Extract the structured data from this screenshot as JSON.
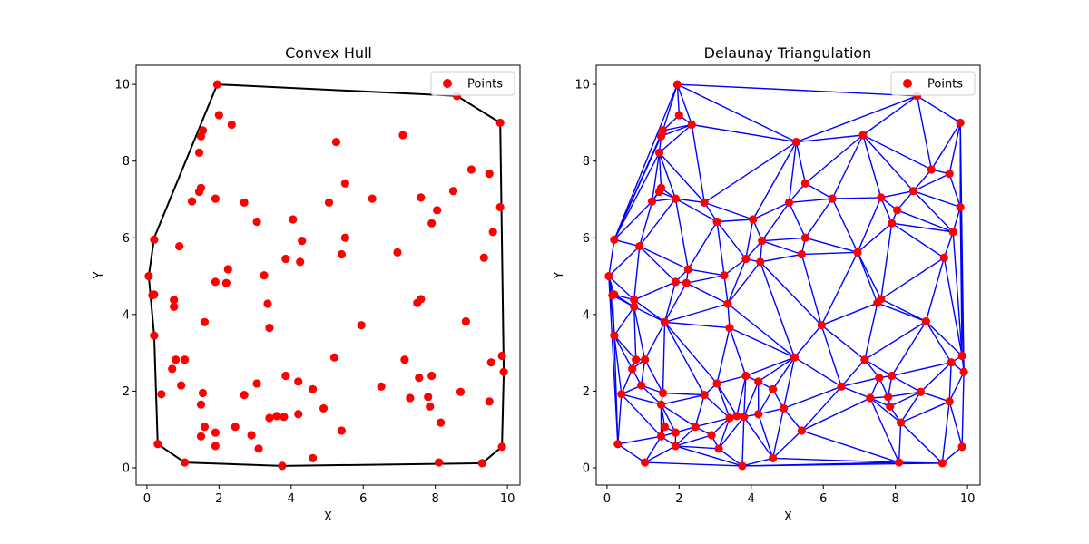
{
  "chart_data": [
    {
      "type": "scatter",
      "title": "Convex Hull",
      "xlabel": "X",
      "ylabel": "Y",
      "xlim": [
        -0.3,
        10.35
      ],
      "ylim": [
        -0.45,
        10.5
      ],
      "xticks": [
        "0",
        "2",
        "4",
        "6",
        "8",
        "10"
      ],
      "yticks": [
        "0",
        "2",
        "4",
        "6",
        "8",
        "10"
      ],
      "grid": false,
      "legend": {
        "placement": "top-right",
        "entries": [
          "Points"
        ]
      },
      "points_color": "#ff0000",
      "hull_color": "#000000",
      "hull": [
        [
          3.75,
          0.05
        ],
        [
          9.3,
          0.12
        ],
        [
          9.85,
          0.55
        ],
        [
          9.9,
          2.5
        ],
        [
          9.8,
          9.0
        ],
        [
          8.6,
          9.7
        ],
        [
          1.95,
          10.0
        ],
        [
          0.2,
          6.0
        ],
        [
          0.05,
          5.0
        ],
        [
          0.2,
          3.45
        ],
        [
          0.3,
          0.62
        ],
        [
          1.05,
          0.14
        ],
        [
          3.75,
          0.05
        ]
      ]
    },
    {
      "type": "scatter",
      "title": "Delaunay Triangulation",
      "xlabel": "X",
      "ylabel": "Y",
      "xlim": [
        -0.3,
        10.35
      ],
      "ylim": [
        -0.45,
        10.5
      ],
      "xticks": [
        "0",
        "2",
        "4",
        "6",
        "8",
        "10"
      ],
      "yticks": [
        "0",
        "2",
        "4",
        "6",
        "8",
        "10"
      ],
      "grid": false,
      "legend": {
        "placement": "top-right",
        "entries": [
          "Points"
        ]
      },
      "points_color": "#ff0000",
      "edge_color": "#0000ff"
    }
  ],
  "points": [
    [
      1.95,
      10.0
    ],
    [
      2.0,
      9.2
    ],
    [
      2.35,
      8.95
    ],
    [
      1.55,
      8.8
    ],
    [
      1.5,
      8.65
    ],
    [
      1.45,
      8.22
    ],
    [
      1.5,
      7.3
    ],
    [
      1.45,
      7.2
    ],
    [
      1.25,
      6.95
    ],
    [
      1.9,
      7.02
    ],
    [
      0.2,
      5.95
    ],
    [
      0.9,
      5.78
    ],
    [
      0.05,
      5.0
    ],
    [
      0.2,
      4.52
    ],
    [
      0.15,
      4.5
    ],
    [
      0.75,
      4.38
    ],
    [
      0.75,
      4.2
    ],
    [
      1.6,
      3.8
    ],
    [
      0.2,
      3.45
    ],
    [
      1.9,
      4.85
    ],
    [
      2.2,
      4.82
    ],
    [
      2.25,
      5.18
    ],
    [
      0.8,
      2.82
    ],
    [
      1.05,
      2.82
    ],
    [
      0.7,
      2.58
    ],
    [
      0.95,
      2.15
    ],
    [
      0.4,
      1.92
    ],
    [
      1.55,
      1.95
    ],
    [
      1.5,
      1.65
    ],
    [
      1.6,
      1.07
    ],
    [
      1.5,
      0.82
    ],
    [
      1.9,
      0.92
    ],
    [
      1.9,
      0.57
    ],
    [
      0.3,
      0.62
    ],
    [
      1.05,
      0.14
    ],
    [
      2.45,
      1.07
    ],
    [
      2.7,
      1.9
    ],
    [
      2.9,
      0.85
    ],
    [
      3.05,
      2.2
    ],
    [
      3.1,
      0.5
    ],
    [
      3.05,
      6.42
    ],
    [
      2.7,
      6.92
    ],
    [
      3.25,
      5.02
    ],
    [
      3.35,
      4.28
    ],
    [
      3.4,
      3.65
    ],
    [
      3.85,
      5.45
    ],
    [
      4.05,
      6.48
    ],
    [
      4.3,
      5.92
    ],
    [
      4.25,
      5.37
    ],
    [
      5.25,
      8.5
    ],
    [
      5.5,
      7.42
    ],
    [
      5.05,
      6.92
    ],
    [
      5.5,
      6.0
    ],
    [
      5.4,
      5.57
    ],
    [
      5.95,
      3.72
    ],
    [
      6.25,
      7.02
    ],
    [
      6.95,
      5.62
    ],
    [
      7.1,
      8.68
    ],
    [
      7.6,
      7.05
    ],
    [
      7.9,
      6.38
    ],
    [
      8.05,
      6.72
    ],
    [
      8.5,
      7.22
    ],
    [
      9.0,
      7.78
    ],
    [
      9.5,
      7.67
    ],
    [
      9.6,
      6.15
    ],
    [
      9.8,
      6.8
    ],
    [
      9.35,
      5.48
    ],
    [
      8.85,
      3.82
    ],
    [
      7.5,
      4.3
    ],
    [
      7.6,
      4.4
    ],
    [
      7.15,
      2.82
    ],
    [
      7.3,
      1.82
    ],
    [
      7.55,
      2.35
    ],
    [
      7.9,
      2.4
    ],
    [
      7.8,
      1.85
    ],
    [
      7.85,
      1.6
    ],
    [
      8.15,
      1.18
    ],
    [
      8.7,
      1.98
    ],
    [
      9.55,
      2.75
    ],
    [
      9.5,
      1.73
    ],
    [
      9.85,
      2.92
    ],
    [
      9.9,
      2.5
    ],
    [
      9.3,
      0.12
    ],
    [
      9.85,
      0.55
    ],
    [
      8.1,
      0.14
    ],
    [
      8.6,
      9.7
    ],
    [
      9.8,
      9.0
    ],
    [
      6.5,
      2.12
    ],
    [
      5.2,
      2.88
    ],
    [
      4.9,
      1.55
    ],
    [
      4.6,
      2.05
    ],
    [
      4.2,
      2.25
    ],
    [
      3.85,
      2.4
    ],
    [
      4.2,
      1.4
    ],
    [
      3.8,
      1.33
    ],
    [
      3.6,
      1.35
    ],
    [
      3.4,
      1.3
    ],
    [
      5.4,
      0.97
    ],
    [
      4.6,
      0.25
    ],
    [
      3.75,
      0.05
    ]
  ]
}
